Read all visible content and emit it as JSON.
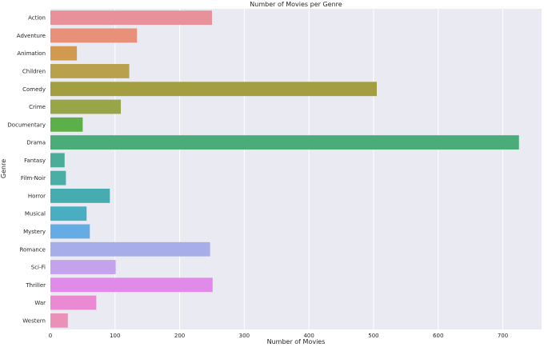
{
  "chart_data": {
    "type": "bar",
    "orientation": "horizontal",
    "title": "Number of Movies per Genre",
    "xlabel": "Number of Movies",
    "ylabel": "Genre",
    "categories": [
      "Action",
      "Adventure",
      "Animation",
      "Children",
      "Comedy",
      "Crime",
      "Documentary",
      "Drama",
      "Fantasy",
      "Film-Noir",
      "Horror",
      "Musical",
      "Mystery",
      "Romance",
      "Sci-Fi",
      "Thriller",
      "War",
      "Western"
    ],
    "values": [
      250,
      134,
      41,
      122,
      505,
      109,
      50,
      725,
      22,
      24,
      92,
      56,
      61,
      247,
      101,
      251,
      71,
      27
    ],
    "colors": [
      "#e8919a",
      "#e8907a",
      "#d29a4f",
      "#b8a04c",
      "#a39e3f",
      "#98a649",
      "#5daf4a",
      "#4aad79",
      "#4bad99",
      "#4aaea6",
      "#46acb0",
      "#4aaec3",
      "#64ace3",
      "#a6ade8",
      "#c5a3ec",
      "#e08be9",
      "#e98ad2",
      "#e991b7"
    ],
    "xlim": [
      0,
      760
    ],
    "xticks": [
      0,
      100,
      200,
      300,
      400,
      500,
      600,
      700
    ],
    "grid": true,
    "background": "#eaeaf2"
  }
}
